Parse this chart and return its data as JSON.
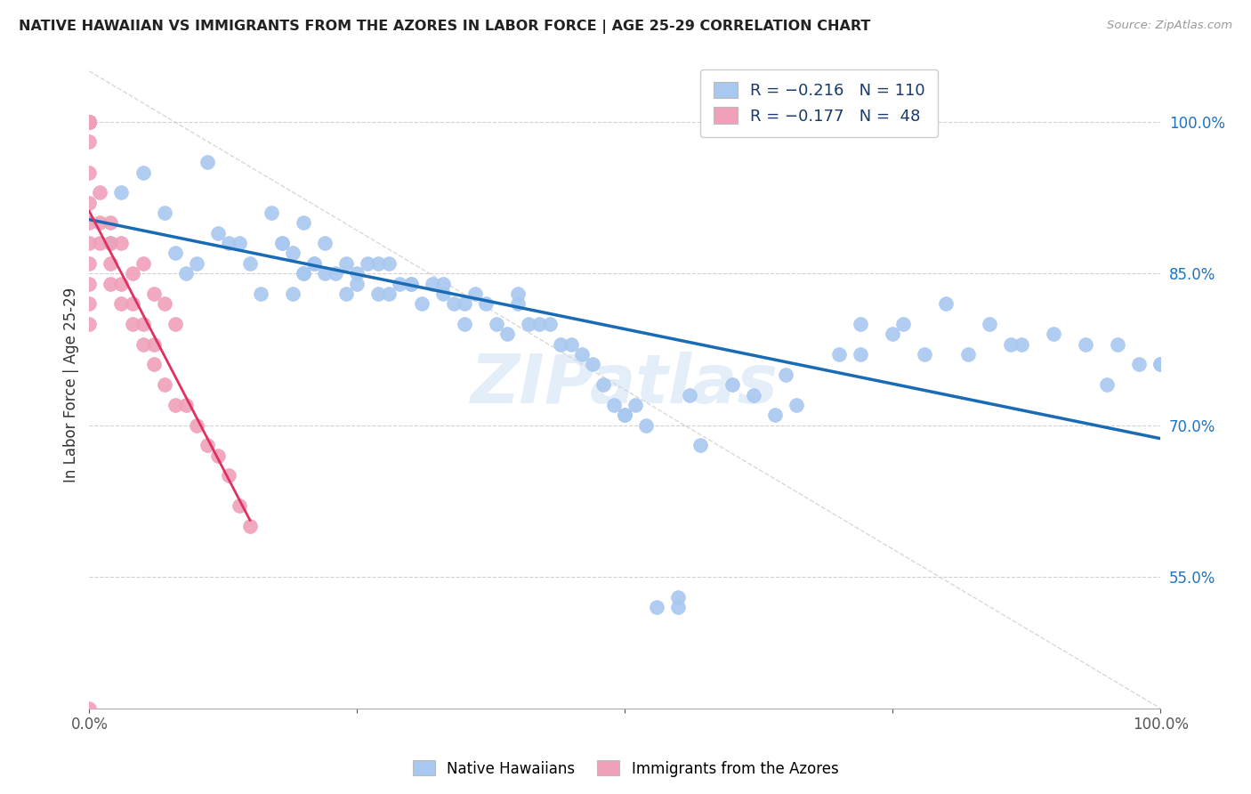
{
  "title": "NATIVE HAWAIIAN VS IMMIGRANTS FROM THE AZORES IN LABOR FORCE | AGE 25-29 CORRELATION CHART",
  "source": "Source: ZipAtlas.com",
  "ylabel": "In Labor Force | Age 25-29",
  "xlim": [
    0.0,
    1.0
  ],
  "ylim": [
    0.42,
    1.06
  ],
  "yticks": [
    0.55,
    0.7,
    0.85,
    1.0
  ],
  "ytick_labels": [
    "55.0%",
    "70.0%",
    "85.0%",
    "100.0%"
  ],
  "blue_color": "#a8c8f0",
  "pink_color": "#f0a0b8",
  "blue_line_color": "#1a6bb5",
  "pink_line_color": "#e03060",
  "watermark": "ZIPatlas",
  "legend_blue_r": "-0.216",
  "legend_blue_n": "110",
  "legend_pink_r": "-0.177",
  "legend_pink_n": "48",
  "blue_scatter_x": [
    0.0,
    0.0,
    0.0,
    0.0,
    0.0,
    0.0,
    0.02,
    0.03,
    0.05,
    0.07,
    0.08,
    0.09,
    0.1,
    0.11,
    0.12,
    0.13,
    0.14,
    0.15,
    0.16,
    0.17,
    0.18,
    0.18,
    0.19,
    0.19,
    0.2,
    0.2,
    0.2,
    0.21,
    0.21,
    0.22,
    0.22,
    0.23,
    0.24,
    0.24,
    0.25,
    0.25,
    0.26,
    0.27,
    0.27,
    0.28,
    0.28,
    0.29,
    0.3,
    0.3,
    0.31,
    0.32,
    0.33,
    0.33,
    0.34,
    0.35,
    0.35,
    0.36,
    0.37,
    0.38,
    0.39,
    0.4,
    0.4,
    0.41,
    0.42,
    0.43,
    0.44,
    0.45,
    0.46,
    0.47,
    0.48,
    0.49,
    0.5,
    0.5,
    0.51,
    0.52,
    0.53,
    0.55,
    0.55,
    0.56,
    0.57,
    0.6,
    0.62,
    0.64,
    0.65,
    0.66,
    0.7,
    0.72,
    0.72,
    0.75,
    0.76,
    0.78,
    0.8,
    0.82,
    0.84,
    0.86,
    0.87,
    0.9,
    0.93,
    0.95,
    0.96,
    0.98,
    1.0,
    1.0
  ],
  "blue_scatter_y": [
    1.0,
    1.0,
    1.0,
    1.0,
    1.0,
    1.0,
    0.88,
    0.93,
    0.95,
    0.91,
    0.87,
    0.85,
    0.86,
    0.96,
    0.89,
    0.88,
    0.88,
    0.86,
    0.83,
    0.91,
    0.88,
    0.88,
    0.87,
    0.83,
    0.9,
    0.85,
    0.85,
    0.86,
    0.86,
    0.88,
    0.85,
    0.85,
    0.86,
    0.83,
    0.85,
    0.84,
    0.86,
    0.83,
    0.86,
    0.86,
    0.83,
    0.84,
    0.84,
    0.84,
    0.82,
    0.84,
    0.84,
    0.83,
    0.82,
    0.8,
    0.82,
    0.83,
    0.82,
    0.8,
    0.79,
    0.82,
    0.83,
    0.8,
    0.8,
    0.8,
    0.78,
    0.78,
    0.77,
    0.76,
    0.74,
    0.72,
    0.71,
    0.71,
    0.72,
    0.7,
    0.52,
    0.53,
    0.52,
    0.73,
    0.68,
    0.74,
    0.73,
    0.71,
    0.75,
    0.72,
    0.77,
    0.8,
    0.77,
    0.79,
    0.8,
    0.77,
    0.82,
    0.77,
    0.8,
    0.78,
    0.78,
    0.79,
    0.78,
    0.74,
    0.78,
    0.76,
    0.76,
    0.76
  ],
  "pink_scatter_x": [
    0.0,
    0.0,
    0.0,
    0.0,
    0.0,
    0.0,
    0.0,
    0.0,
    0.0,
    0.0,
    0.01,
    0.01,
    0.01,
    0.02,
    0.02,
    0.02,
    0.03,
    0.03,
    0.04,
    0.04,
    0.05,
    0.05,
    0.06,
    0.06,
    0.07,
    0.08,
    0.09,
    0.1,
    0.11,
    0.12,
    0.13,
    0.14,
    0.15,
    0.04,
    0.06,
    0.07,
    0.08,
    0.02,
    0.03,
    0.05,
    0.0,
    0.0,
    0.0,
    0.0,
    0.0,
    0.0,
    0.0,
    0.0
  ],
  "pink_scatter_y": [
    1.0,
    1.0,
    1.0,
    1.0,
    1.0,
    1.0,
    1.0,
    1.0,
    0.98,
    0.95,
    0.93,
    0.9,
    0.88,
    0.88,
    0.86,
    0.84,
    0.84,
    0.82,
    0.82,
    0.8,
    0.8,
    0.78,
    0.78,
    0.76,
    0.74,
    0.72,
    0.72,
    0.7,
    0.68,
    0.67,
    0.65,
    0.62,
    0.6,
    0.85,
    0.83,
    0.82,
    0.8,
    0.9,
    0.88,
    0.86,
    0.92,
    0.9,
    0.88,
    0.86,
    0.84,
    0.82,
    0.8,
    0.42
  ],
  "diag_line_x": [
    0.0,
    1.0
  ],
  "diag_line_y": [
    1.05,
    0.42
  ]
}
